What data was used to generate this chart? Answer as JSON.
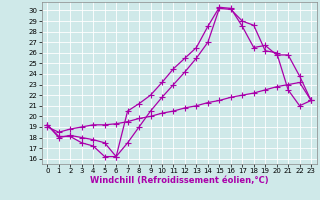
{
  "xlabel": "Windchill (Refroidissement éolien,°C)",
  "background_color": "#cfe9e9",
  "grid_color": "#ffffff",
  "line_color": "#aa00aa",
  "xlim": [
    -0.5,
    23.5
  ],
  "ylim": [
    15.5,
    30.8
  ],
  "xticks": [
    0,
    1,
    2,
    3,
    4,
    5,
    6,
    7,
    8,
    9,
    10,
    11,
    12,
    13,
    14,
    15,
    16,
    17,
    18,
    19,
    20,
    21,
    22,
    23
  ],
  "yticks": [
    16,
    17,
    18,
    19,
    20,
    21,
    22,
    23,
    24,
    25,
    26,
    27,
    28,
    29,
    30
  ],
  "series": [
    {
      "x": [
        0,
        1,
        2,
        3,
        4,
        5,
        6,
        7,
        8,
        9,
        10,
        11,
        12,
        13,
        14,
        15,
        16,
        17,
        18,
        19,
        20,
        21,
        22,
        23
      ],
      "y": [
        19.2,
        18.1,
        18.1,
        17.5,
        17.2,
        16.2,
        16.2,
        17.5,
        19.0,
        20.5,
        21.8,
        23.0,
        24.2,
        25.5,
        27.0,
        30.2,
        30.1,
        29.0,
        28.6,
        26.2,
        26.0,
        22.5,
        21.0,
        21.5
      ]
    },
    {
      "x": [
        0,
        1,
        2,
        3,
        4,
        5,
        6,
        7,
        8,
        9,
        10,
        11,
        12,
        13,
        14,
        15,
        16,
        17,
        18,
        19,
        20,
        21,
        22,
        23
      ],
      "y": [
        19.2,
        18.0,
        18.2,
        18.0,
        17.8,
        17.5,
        16.2,
        20.5,
        21.2,
        22.0,
        23.2,
        24.5,
        25.5,
        26.5,
        28.5,
        30.3,
        30.2,
        28.5,
        26.5,
        26.7,
        25.8,
        25.8,
        23.8,
        21.5
      ]
    },
    {
      "x": [
        0,
        1,
        2,
        3,
        4,
        5,
        6,
        7,
        8,
        9,
        10,
        11,
        12,
        13,
        14,
        15,
        16,
        17,
        18,
        19,
        20,
        21,
        22,
        23
      ],
      "y": [
        19.0,
        18.5,
        18.8,
        19.0,
        19.2,
        19.2,
        19.3,
        19.5,
        19.8,
        20.0,
        20.3,
        20.5,
        20.8,
        21.0,
        21.3,
        21.5,
        21.8,
        22.0,
        22.2,
        22.5,
        22.8,
        23.0,
        23.2,
        21.5
      ]
    }
  ],
  "marker": "+",
  "markersize": 4,
  "linewidth": 0.9,
  "tick_fontsize": 5,
  "xlabel_fontsize": 6
}
